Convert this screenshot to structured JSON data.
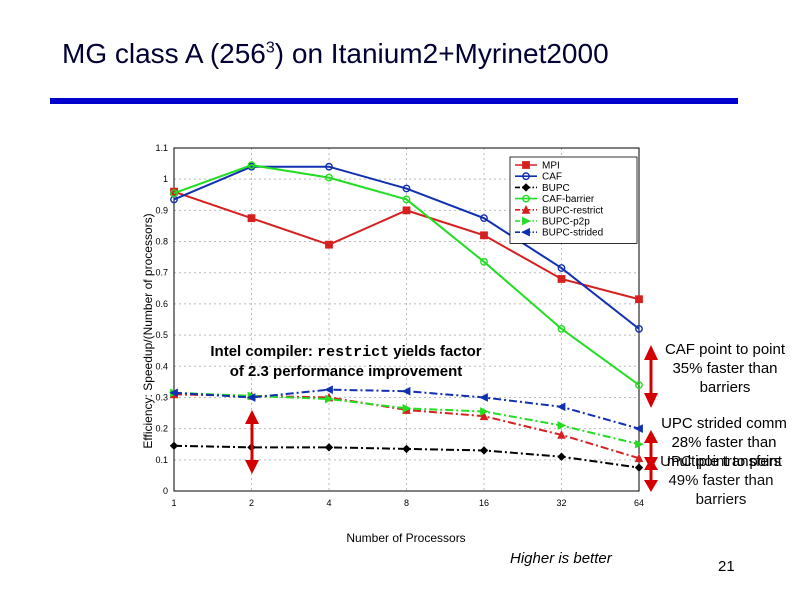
{
  "slide": {
    "title_main": "MG class A (256",
    "title_sup": "3",
    "title_rest": ") on Itanium2+Myrinet2000",
    "annotation_left_1": "Intel compiler: ",
    "annotation_left_code": "restrict",
    "annotation_left_2": " yields factor of 2.3 performance improvement",
    "annotation_right_1": "CAF point to point 35% faster than barriers",
    "annotation_right_2": "UPC strided comm 28% faster than multiple transfers",
    "annotation_right_3": "UPC point to point 49% faster than barriers",
    "footer_note": "Higher is better",
    "page_number": "21"
  },
  "colors": {
    "title_rule": "#0000cc",
    "arrow": "#d40000"
  },
  "chart_data": {
    "type": "line",
    "xlabel": "Number of Processors",
    "ylabel": "Efficiency: Speedup/(Number of processors)",
    "x": [
      "1",
      "2",
      "4",
      "8",
      "16",
      "32",
      "64"
    ],
    "ylim": [
      0,
      1.1
    ],
    "yticks": [
      "0",
      "0.1",
      "0.2",
      "0.3",
      "0.4",
      "0.5",
      "0.6",
      "0.7",
      "0.8",
      "0.9",
      "1",
      "1.1"
    ],
    "grid": true,
    "legend_position": "top-right",
    "series": [
      {
        "name": "MPI",
        "color": "#d62020",
        "marker": "square",
        "dash": "solid",
        "values": [
          0.96,
          0.875,
          0.79,
          0.9,
          0.82,
          0.68,
          0.615
        ]
      },
      {
        "name": "CAF",
        "color": "#1030b0",
        "marker": "circle",
        "dash": "solid",
        "values": [
          0.935,
          1.04,
          1.04,
          0.97,
          0.875,
          0.715,
          0.52
        ]
      },
      {
        "name": "BUPC",
        "color": "#000000",
        "marker": "diamond",
        "dash": "dashdot",
        "values": [
          0.145,
          0.14,
          0.14,
          0.135,
          0.13,
          0.11,
          0.075
        ]
      },
      {
        "name": "CAF-barrier",
        "color": "#22dd22",
        "marker": "circle",
        "dash": "solid",
        "values": [
          0.955,
          1.045,
          1.005,
          0.935,
          0.735,
          0.52,
          0.34
        ]
      },
      {
        "name": "BUPC-restrict",
        "color": "#d62020",
        "marker": "triangle-up",
        "dash": "dashdot",
        "values": [
          0.31,
          0.305,
          0.3,
          0.26,
          0.24,
          0.18,
          0.105
        ]
      },
      {
        "name": "BUPC-p2p",
        "color": "#22dd22",
        "marker": "triangle-right",
        "dash": "dashdot",
        "values": [
          0.315,
          0.305,
          0.295,
          0.265,
          0.255,
          0.21,
          0.15
        ]
      },
      {
        "name": "BUPC-strided",
        "color": "#1030b0",
        "marker": "triangle-left",
        "dash": "dashdot",
        "values": [
          0.315,
          0.3,
          0.325,
          0.32,
          0.3,
          0.27,
          0.2
        ]
      }
    ]
  }
}
